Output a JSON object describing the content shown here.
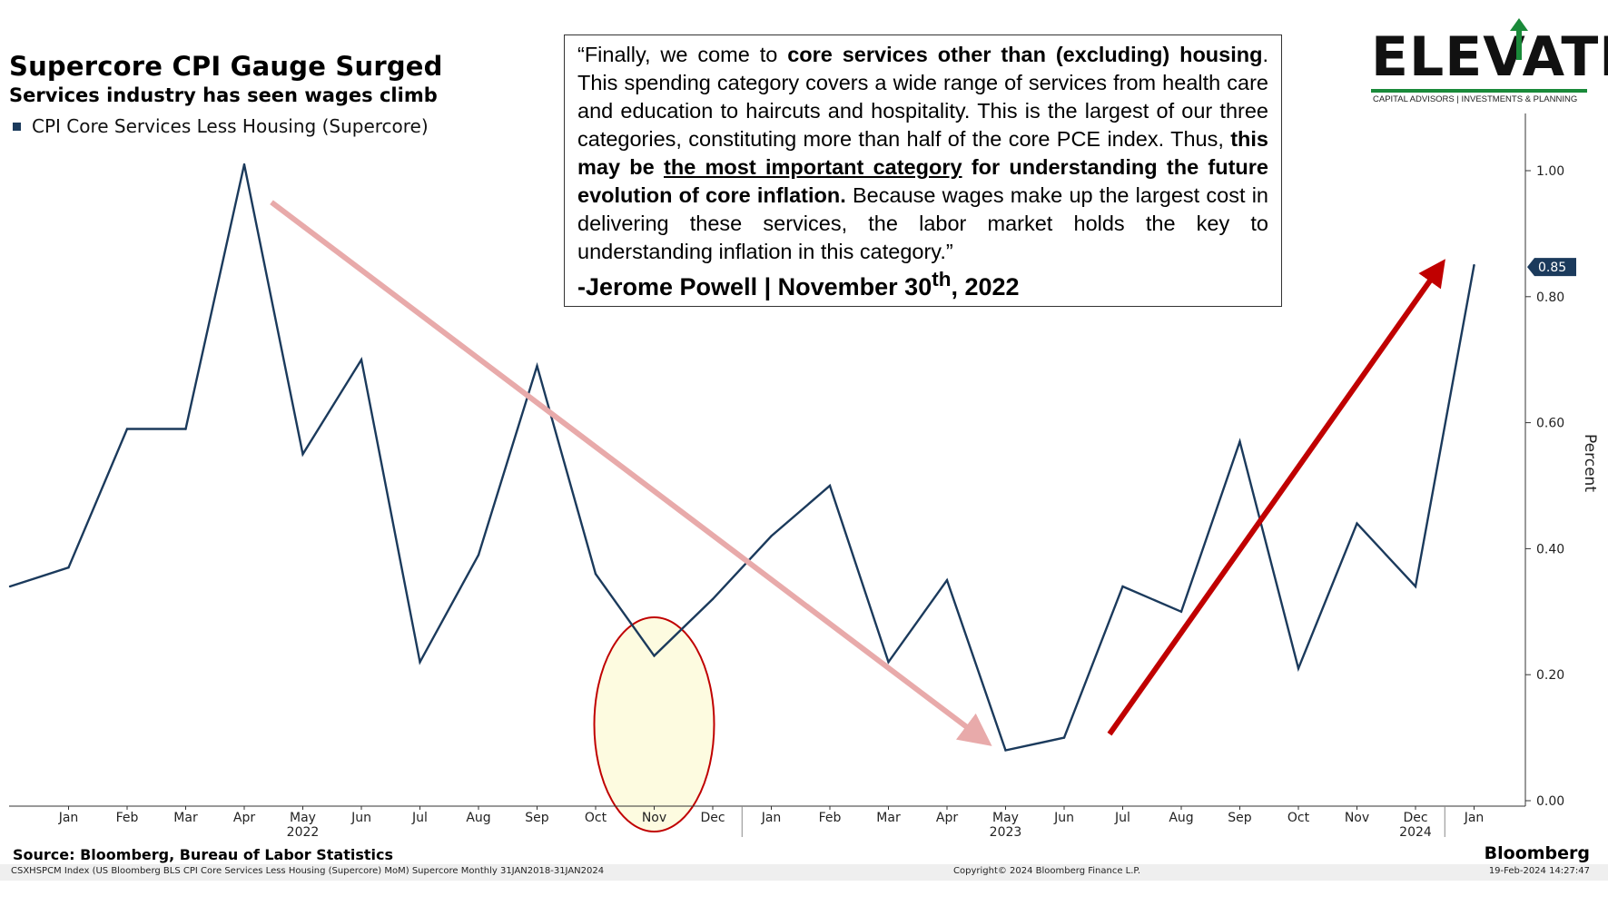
{
  "header": {
    "title": "Supercore CPI Gauge Surged",
    "subtitle": "Services industry has seen wages climb",
    "legend_label": "CPI Core Services Less Housing (Supercore)"
  },
  "quote": {
    "p1": "“Finally, we come to ",
    "b1": "core services other than (excluding) housing",
    "p2": ". This spending category covers a wide range of services from health care and education to haircuts and hospitality. This is the largest of our three categories, constituting more than half of the core PCE index. Thus, ",
    "b2": "this may be ",
    "bu": "the most important category",
    "b3": " for understanding the future evolution of core inflation.",
    "p3": " Because wages make up the largest cost in delivering these services, the labor market holds the key to understanding inflation in this category.”",
    "attribution_pre": "-Jerome Powell | November 30",
    "attribution_sup": "th",
    "attribution_post": ", 2022"
  },
  "logo": {
    "name": "ELEVATE",
    "tagline": "CAPITAL ADVISORS | INVESTMENTS & PLANNING",
    "accent": "#1a8a3a"
  },
  "chart_data": {
    "type": "line",
    "ylabel": "Percent",
    "ylim": [
      0,
      1.1
    ],
    "y_ticks": [
      "0.00",
      "0.20",
      "0.40",
      "0.60",
      "0.80",
      "1.00"
    ],
    "y_tick_values": [
      0,
      0.2,
      0.4,
      0.6,
      0.8,
      1.0
    ],
    "last_value_label": "0.85",
    "x_ticks": [
      "Jan",
      "Feb",
      "Mar",
      "Apr",
      "May",
      "Jun",
      "Jul",
      "Aug",
      "Sep",
      "Oct",
      "Nov",
      "Dec",
      "Jan",
      "Feb",
      "Mar",
      "Apr",
      "May",
      "Jun",
      "Jul",
      "Aug",
      "Sep",
      "Oct",
      "Nov",
      "Dec",
      "Jan"
    ],
    "year_labels": [
      {
        "label": "2022",
        "index": 5
      },
      {
        "label": "2023",
        "index": 17
      },
      {
        "label": "2024",
        "index": 24
      }
    ],
    "x": [
      "2021-12",
      "2022-01",
      "2022-02",
      "2022-03",
      "2022-04",
      "2022-05",
      "2022-06",
      "2022-07",
      "2022-08",
      "2022-09",
      "2022-10",
      "2022-11",
      "2022-12",
      "2023-01",
      "2023-02",
      "2023-03",
      "2023-04",
      "2023-05",
      "2023-06",
      "2023-07",
      "2023-08",
      "2023-09",
      "2023-10",
      "2023-11",
      "2023-12",
      "2024-01"
    ],
    "series": [
      {
        "name": "CPI Core Services Less Housing (Supercore)",
        "color": "#1b3a5c",
        "values": [
          0.34,
          0.37,
          0.59,
          0.59,
          1.01,
          0.55,
          0.7,
          0.22,
          0.39,
          0.69,
          0.36,
          0.23,
          0.32,
          0.42,
          0.5,
          0.22,
          0.35,
          0.08,
          0.1,
          0.34,
          0.3,
          0.57,
          0.21,
          0.44,
          0.34,
          0.85
        ]
      }
    ],
    "annotations": {
      "down_arrow": {
        "color": "#e8aaaa",
        "from": [
          "2022-04",
          0.96
        ],
        "to": [
          "2023-04",
          0.11
        ]
      },
      "up_arrow": {
        "color": "#c00000",
        "from": [
          "2023-06",
          0.1
        ],
        "to": [
          "2023-12",
          0.84
        ]
      },
      "highlight_ellipse": {
        "at": "2022-11",
        "fill": "#fdfbe0",
        "stroke": "#c00000"
      }
    }
  },
  "footer": {
    "source": "Source: Bloomberg, Bureau of Labor Statistics",
    "brand": "Bloomberg",
    "index_desc": "CSXHSPCM Index (US Bloomberg BLS CPI Core Services Less Housing (Supercore) MoM) Supercore  Monthly 31JAN2018-31JAN2024",
    "copyright": "Copyright© 2024 Bloomberg Finance L.P.",
    "timestamp": "19-Feb-2024 14:27:47"
  }
}
